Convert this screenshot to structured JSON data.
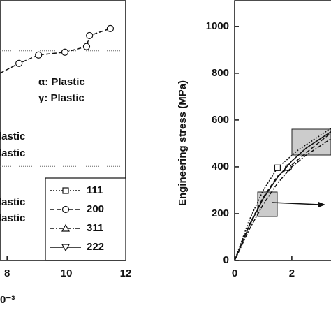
{
  "chart_data": [
    {
      "type": "line",
      "x_label": "0⁻³",
      "xlim": [
        7.76,
        12
      ],
      "ylim": [
        0,
        1110
      ],
      "xticks": [
        8,
        10,
        12
      ],
      "reference_lines": [
        896,
        402
      ],
      "annotations": [
        "α: Plastic",
        "γ: Plastic",
        "lastic",
        "lastic",
        "lastic",
        "lastic"
      ],
      "legend": "lower right",
      "series": [
        {
          "name": "111",
          "dash": "2,2",
          "marker": "square",
          "x": [],
          "values": []
        },
        {
          "name": "200",
          "dash": "6,3",
          "marker": "circle",
          "x": [
            7.76,
            8.4,
            9.06,
            9.95,
            10.68,
            10.78,
            11.48
          ],
          "values": [
            800,
            842,
            878,
            890,
            914,
            961,
            991
          ]
        },
        {
          "name": "311",
          "dash": "6,2,2,2",
          "marker": "triangle",
          "x": [],
          "values": []
        },
        {
          "name": "222",
          "dash": "none",
          "marker": "down-triangle",
          "x": [],
          "values": []
        }
      ]
    },
    {
      "type": "line",
      "y_label": "Engineering stress (MPa)",
      "xlim": [
        0,
        3.37
      ],
      "ylim": [
        0,
        1110
      ],
      "xticks": [
        0,
        2
      ],
      "yticks": [
        0,
        200,
        400,
        600,
        800,
        1000
      ],
      "series": [
        {
          "name": "111",
          "dash": "2,2",
          "marker": "square",
          "x": [
            0,
            0.5,
            1,
            1.5,
            2.2,
            3.37
          ],
          "values": [
            0,
            170,
            300,
            396,
            470,
            565
          ],
          "marker_x": [
            1.5
          ],
          "marker_values": [
            396
          ]
        },
        {
          "name": "200",
          "dash": "6,3",
          "marker": "circle",
          "x": [
            0,
            0.5,
            1,
            1.5,
            1.88,
            2.5,
            3.37
          ],
          "values": [
            0,
            150,
            270,
            360,
            396,
            460,
            545
          ],
          "marker_x": [
            1.88
          ],
          "marker_values": [
            396
          ]
        },
        {
          "name": "311",
          "dash": "6,2,2,2",
          "marker": "triangle",
          "x": [
            0,
            0.5,
            1,
            1.5,
            2,
            2.5,
            3.37
          ],
          "values": [
            0,
            130,
            240,
            330,
            400,
            450,
            520
          ],
          "marker_x": [],
          "marker_values": []
        },
        {
          "name": "222",
          "dash": "none",
          "marker": "down-triangle",
          "x": [
            0,
            0.5,
            1,
            1.5,
            2,
            2.5,
            3.37
          ],
          "values": [
            0,
            145,
            265,
            355,
            425,
            480,
            550
          ],
          "marker_x": [],
          "marker_values": []
        }
      ]
    }
  ]
}
